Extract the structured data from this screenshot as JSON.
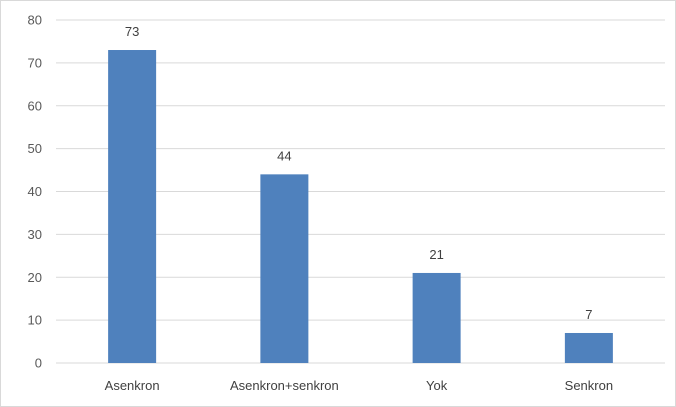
{
  "chart_data": {
    "type": "bar",
    "categories": [
      "Asenkron",
      "Asenkron+senkron",
      "Yok",
      "Senkron"
    ],
    "values": [
      73,
      44,
      21,
      7
    ],
    "data_labels": [
      "73",
      "44",
      "21",
      "7"
    ],
    "title": "",
    "xlabel": "",
    "ylabel": "",
    "ylim": [
      0,
      80
    ],
    "yticks": [
      0,
      10,
      20,
      30,
      40,
      50,
      60,
      70,
      80
    ],
    "grid": true,
    "legend": "none",
    "bar_color": "#4f81bd",
    "grid_color": "#d9d9d9"
  }
}
